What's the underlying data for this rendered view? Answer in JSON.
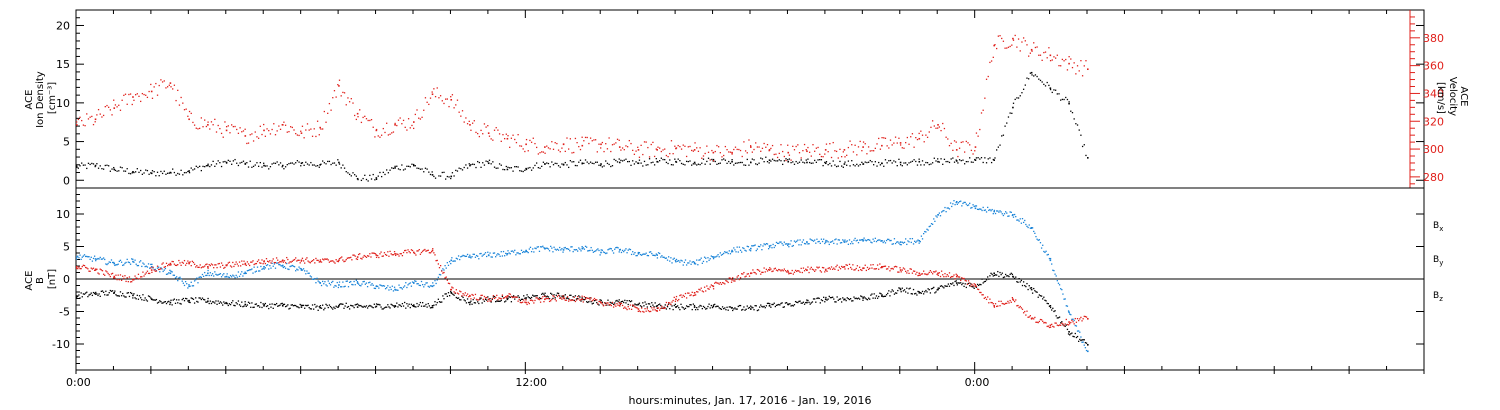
{
  "colors": {
    "black": "#000000",
    "red": "#e0201b",
    "blue": "#1a84d8"
  },
  "chart_data": [
    {
      "type": "scatter",
      "panel": "top",
      "grid": false,
      "xlim_hours": [
        0,
        36
      ],
      "left_axis": {
        "label_lines": [
          "ACE",
          "Ion Density",
          "[cm⁻³]"
        ],
        "ylim": [
          -1,
          22
        ],
        "ticks": [
          0,
          5,
          10,
          15,
          20
        ]
      },
      "right_axis": {
        "label_lines": [
          "ACE",
          "Velocity",
          "[km/s]"
        ],
        "ylim": [
          272,
          400
        ],
        "ticks": [
          280,
          300,
          320,
          340,
          360,
          380
        ],
        "color": "#e0201b"
      },
      "series": [
        {
          "name": "",
          "axis": "left",
          "color": "#000000",
          "hours": [
            0,
            0.5,
            1,
            1.5,
            2,
            2.5,
            3,
            3.5,
            4,
            4.5,
            5,
            5.5,
            6,
            6.5,
            7,
            7.5,
            8,
            8.5,
            9,
            9.5,
            10,
            10.5,
            11,
            11.5,
            12,
            12.5,
            13,
            13.5,
            14,
            14.5,
            15,
            15.5,
            16,
            16.5,
            17,
            17.5,
            18,
            18.5,
            19,
            19.5,
            20,
            20.5,
            21,
            21.5,
            22,
            22.5,
            23,
            23.5,
            24,
            24.5,
            25,
            25.5,
            26,
            26.5,
            27
          ],
          "values": [
            1.8,
            2.0,
            1.5,
            1.2,
            1.0,
            1.1,
            1.3,
            2.0,
            2.4,
            2.2,
            2.0,
            2.0,
            2.3,
            2.1,
            2.4,
            0.3,
            0.4,
            1.7,
            2.0,
            0.8,
            0.6,
            2.0,
            2.3,
            1.5,
            1.6,
            2.2,
            2.1,
            2.3,
            2.2,
            2.4,
            2.3,
            2.5,
            2.5,
            2.4,
            2.6,
            2.5,
            2.4,
            2.7,
            2.5,
            2.4,
            2.3,
            2.2,
            2.2,
            2.3,
            2.4,
            2.5,
            2.5,
            2.6,
            2.7,
            2.7,
            9.5,
            14.0,
            12.0,
            10.0,
            3.0
          ]
        },
        {
          "name": "",
          "axis": "right",
          "color": "#e0201b",
          "hours": [
            0,
            0.5,
            1,
            1.5,
            2,
            2.5,
            3,
            3.5,
            4,
            4.5,
            5,
            5.5,
            6,
            6.5,
            7,
            7.5,
            8,
            8.5,
            9,
            9.5,
            10,
            10.5,
            11,
            11.5,
            12,
            12.5,
            13,
            13.5,
            14,
            14.5,
            15,
            15.5,
            16,
            16.5,
            17,
            17.5,
            18,
            18.5,
            19,
            19.5,
            20,
            20.5,
            21,
            21.5,
            22,
            22.5,
            23,
            23.5,
            24,
            24.5,
            25,
            25.5,
            26,
            26.5,
            27
          ],
          "values": [
            318,
            322,
            330,
            338,
            342,
            348,
            322,
            318,
            314,
            310,
            314,
            318,
            312,
            316,
            346,
            326,
            314,
            318,
            320,
            340,
            336,
            318,
            312,
            308,
            304,
            302,
            304,
            303,
            304,
            302,
            300,
            300,
            301,
            300,
            298,
            298,
            302,
            300,
            298,
            299,
            300,
            300,
            302,
            303,
            305,
            308,
            318,
            300,
            302,
            375,
            380,
            372,
            368,
            362,
            358
          ]
        }
      ]
    },
    {
      "type": "scatter",
      "panel": "bottom",
      "grid": false,
      "xlim_hours": [
        0,
        36
      ],
      "left_axis": {
        "label_lines": [
          "ACE",
          "B",
          "[nT]"
        ],
        "ylim": [
          -14,
          14
        ],
        "ticks": [
          -10,
          -5,
          0,
          5,
          10
        ]
      },
      "x_axis": {
        "tick_labels": [
          {
            "hour": 0,
            "text": "0:00"
          },
          {
            "hour": 12,
            "text": "12:00"
          },
          {
            "hour": 24,
            "text": "0:00"
          }
        ],
        "xlabel": "hours:minutes, Jan. 17, 2016 - Jan. 19, 2016"
      },
      "series": [
        {
          "name": "Bx",
          "color": "#000000",
          "hours": [
            0,
            0.5,
            1,
            1.5,
            2,
            2.5,
            3,
            3.5,
            4,
            4.5,
            5,
            5.5,
            6,
            6.5,
            7,
            7.5,
            8,
            8.5,
            9,
            9.5,
            10,
            10.5,
            11,
            11.5,
            12,
            12.5,
            13,
            13.5,
            14,
            14.5,
            15,
            15.5,
            16,
            16.5,
            17,
            17.5,
            18,
            18.5,
            19,
            19.5,
            20,
            20.5,
            21,
            21.5,
            22,
            22.5,
            23,
            23.5,
            24,
            24.5,
            25,
            25.5,
            26,
            26.5,
            27
          ],
          "values": [
            -2.5,
            -2.2,
            -2.0,
            -2.4,
            -3.0,
            -3.5,
            -3.2,
            -3.3,
            -3.6,
            -3.8,
            -4.0,
            -4.0,
            -4.2,
            -4.3,
            -4.0,
            -4.2,
            -4.1,
            -4.0,
            -3.9,
            -4.0,
            -2.0,
            -3.5,
            -3.0,
            -3.0,
            -2.8,
            -2.5,
            -2.5,
            -3.0,
            -3.5,
            -3.5,
            -3.8,
            -4.0,
            -4.2,
            -4.2,
            -4.1,
            -4.3,
            -4.5,
            -4.0,
            -3.8,
            -3.5,
            -3.0,
            -3.0,
            -2.8,
            -2.5,
            -1.5,
            -2.0,
            -1.5,
            -0.5,
            -1.0,
            1.0,
            0.5,
            -1.5,
            -4.0,
            -8.0,
            -10.0
          ]
        },
        {
          "name": "By",
          "color": "#1a84d8",
          "hours": [
            0,
            0.5,
            1,
            1.5,
            2,
            2.5,
            3,
            3.5,
            4,
            4.5,
            5,
            5.5,
            6,
            6.5,
            7,
            7.5,
            8,
            8.5,
            9,
            9.5,
            10,
            10.5,
            11,
            11.5,
            12,
            12.5,
            13,
            13.5,
            14,
            14.5,
            15,
            15.5,
            16,
            16.5,
            17,
            17.5,
            18,
            18.5,
            19,
            19.5,
            20,
            20.5,
            21,
            21.5,
            22,
            22.5,
            23,
            23.5,
            24,
            24.5,
            25,
            25.5,
            26,
            26.5,
            27
          ],
          "values": [
            3.5,
            3.2,
            2.5,
            2.8,
            2.0,
            1.0,
            -1.0,
            1.0,
            0.5,
            1.0,
            2.0,
            2.2,
            1.5,
            -0.5,
            -0.8,
            -0.5,
            -1.0,
            -1.5,
            -0.5,
            -1.0,
            3.0,
            3.5,
            3.8,
            4.0,
            4.5,
            4.8,
            4.6,
            4.8,
            4.2,
            4.6,
            4.0,
            3.8,
            2.8,
            2.5,
            3.5,
            4.5,
            4.8,
            5.2,
            5.5,
            5.8,
            5.8,
            5.8,
            6.0,
            6.0,
            5.8,
            6.0,
            10.0,
            12.0,
            11.0,
            10.5,
            10.0,
            8.0,
            3.0,
            -5.0,
            -11.0
          ]
        },
        {
          "name": "Bz",
          "color": "#e0201b",
          "hours": [
            0,
            0.5,
            1,
            1.5,
            2,
            2.5,
            3,
            3.5,
            4,
            4.5,
            5,
            5.5,
            6,
            6.5,
            7,
            7.5,
            8,
            8.5,
            9,
            9.5,
            10,
            10.5,
            11,
            11.5,
            12,
            12.5,
            13,
            13.5,
            14,
            14.5,
            15,
            15.5,
            16,
            16.5,
            17,
            17.5,
            18,
            18.5,
            19,
            19.5,
            20,
            20.5,
            21,
            21.5,
            22,
            22.5,
            23,
            23.5,
            24,
            24.5,
            25,
            25.5,
            26,
            26.5,
            27
          ],
          "values": [
            2.0,
            1.5,
            0.5,
            0.0,
            1.5,
            2.5,
            2.5,
            2.0,
            2.2,
            2.5,
            2.8,
            3.0,
            3.0,
            2.8,
            3.0,
            3.5,
            3.8,
            4.0,
            4.2,
            4.5,
            -1.5,
            -2.5,
            -3.0,
            -2.5,
            -3.5,
            -3.0,
            -2.8,
            -3.0,
            -3.5,
            -4.0,
            -4.5,
            -4.8,
            -3.0,
            -2.0,
            -1.0,
            0.0,
            1.0,
            1.5,
            1.2,
            1.5,
            1.5,
            2.0,
            1.8,
            2.0,
            1.5,
            1.0,
            1.0,
            0.5,
            -1.0,
            -4.0,
            -3.0,
            -6.0,
            -7.0,
            -6.5,
            -6.0
          ]
        }
      ]
    }
  ],
  "legend": [
    {
      "main": "B",
      "sub": "x",
      "color": "#000000"
    },
    {
      "main": "B",
      "sub": "y",
      "color": "#1a84d8"
    },
    {
      "main": "B",
      "sub": "z",
      "color": "#e0201b"
    }
  ]
}
